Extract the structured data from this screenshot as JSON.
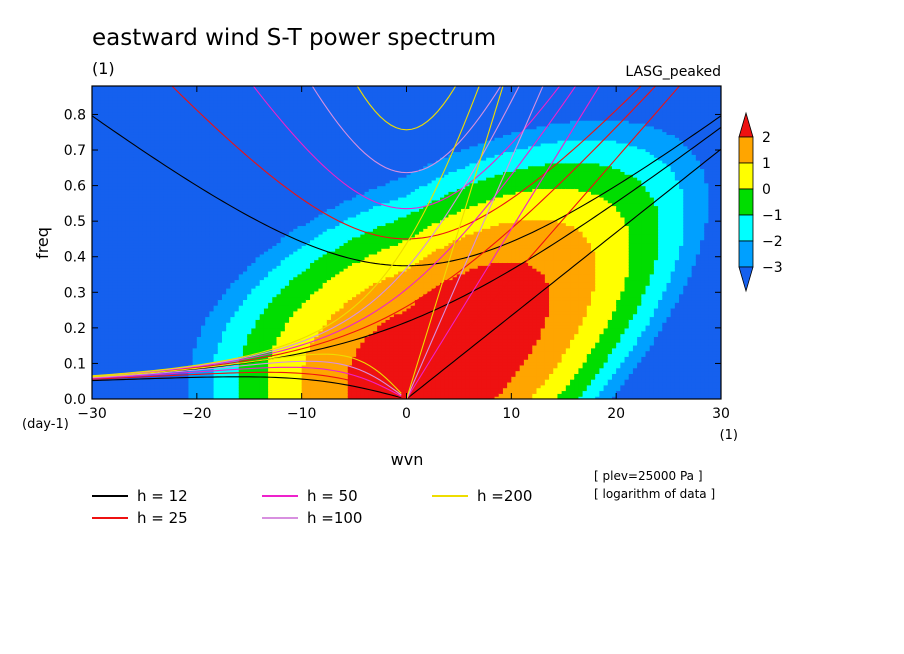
{
  "chart_data": {
    "type": "heatmap",
    "title": "eastward wind S-T power spectrum",
    "subtitle_left": "(1)",
    "subtitle_right": "LASG_peaked",
    "xlabel": "wvn",
    "ylabel": "freq",
    "x_unit": "(1)",
    "y_unit": "(day-1)",
    "xlim": [
      -30,
      30
    ],
    "ylim": [
      0,
      0.88
    ],
    "xticks": [
      -30,
      -20,
      -10,
      0,
      10,
      20,
      30
    ],
    "yticks": [
      0.0,
      0.1,
      0.2,
      0.3,
      0.4,
      0.5,
      0.6,
      0.7,
      0.8
    ],
    "notes": [
      "[ plev=25000 Pa ]",
      "[ logarithm of data ]"
    ],
    "colorbar": {
      "ticks": [
        2,
        1,
        0,
        -1,
        -2,
        -3
      ],
      "levels": [
        {
          "from": 2,
          "to": null,
          "color": "#ee1111"
        },
        {
          "from": 1,
          "to": 2,
          "color": "#ffa500"
        },
        {
          "from": 0,
          "to": 1,
          "color": "#ffff00"
        },
        {
          "from": -1,
          "to": 0,
          "color": "#00dd00"
        },
        {
          "from": -2,
          "to": -1,
          "color": "#00ffff"
        },
        {
          "from": -3,
          "to": -2,
          "color": "#00a0ff"
        },
        {
          "from": null,
          "to": -3,
          "color": "#1560ee"
        }
      ]
    },
    "legend": [
      {
        "label": "h = 12",
        "color": "#000000",
        "h": 12
      },
      {
        "label": "h = 25",
        "color": "#ee1111",
        "h": 25
      },
      {
        "label": "h = 50",
        "color": "#ee22cc",
        "h": 50
      },
      {
        "label": "h =100",
        "color": "#d890e0",
        "h": 100
      },
      {
        "label": "h =200",
        "color": "#eedd00",
        "h": 200
      }
    ]
  }
}
